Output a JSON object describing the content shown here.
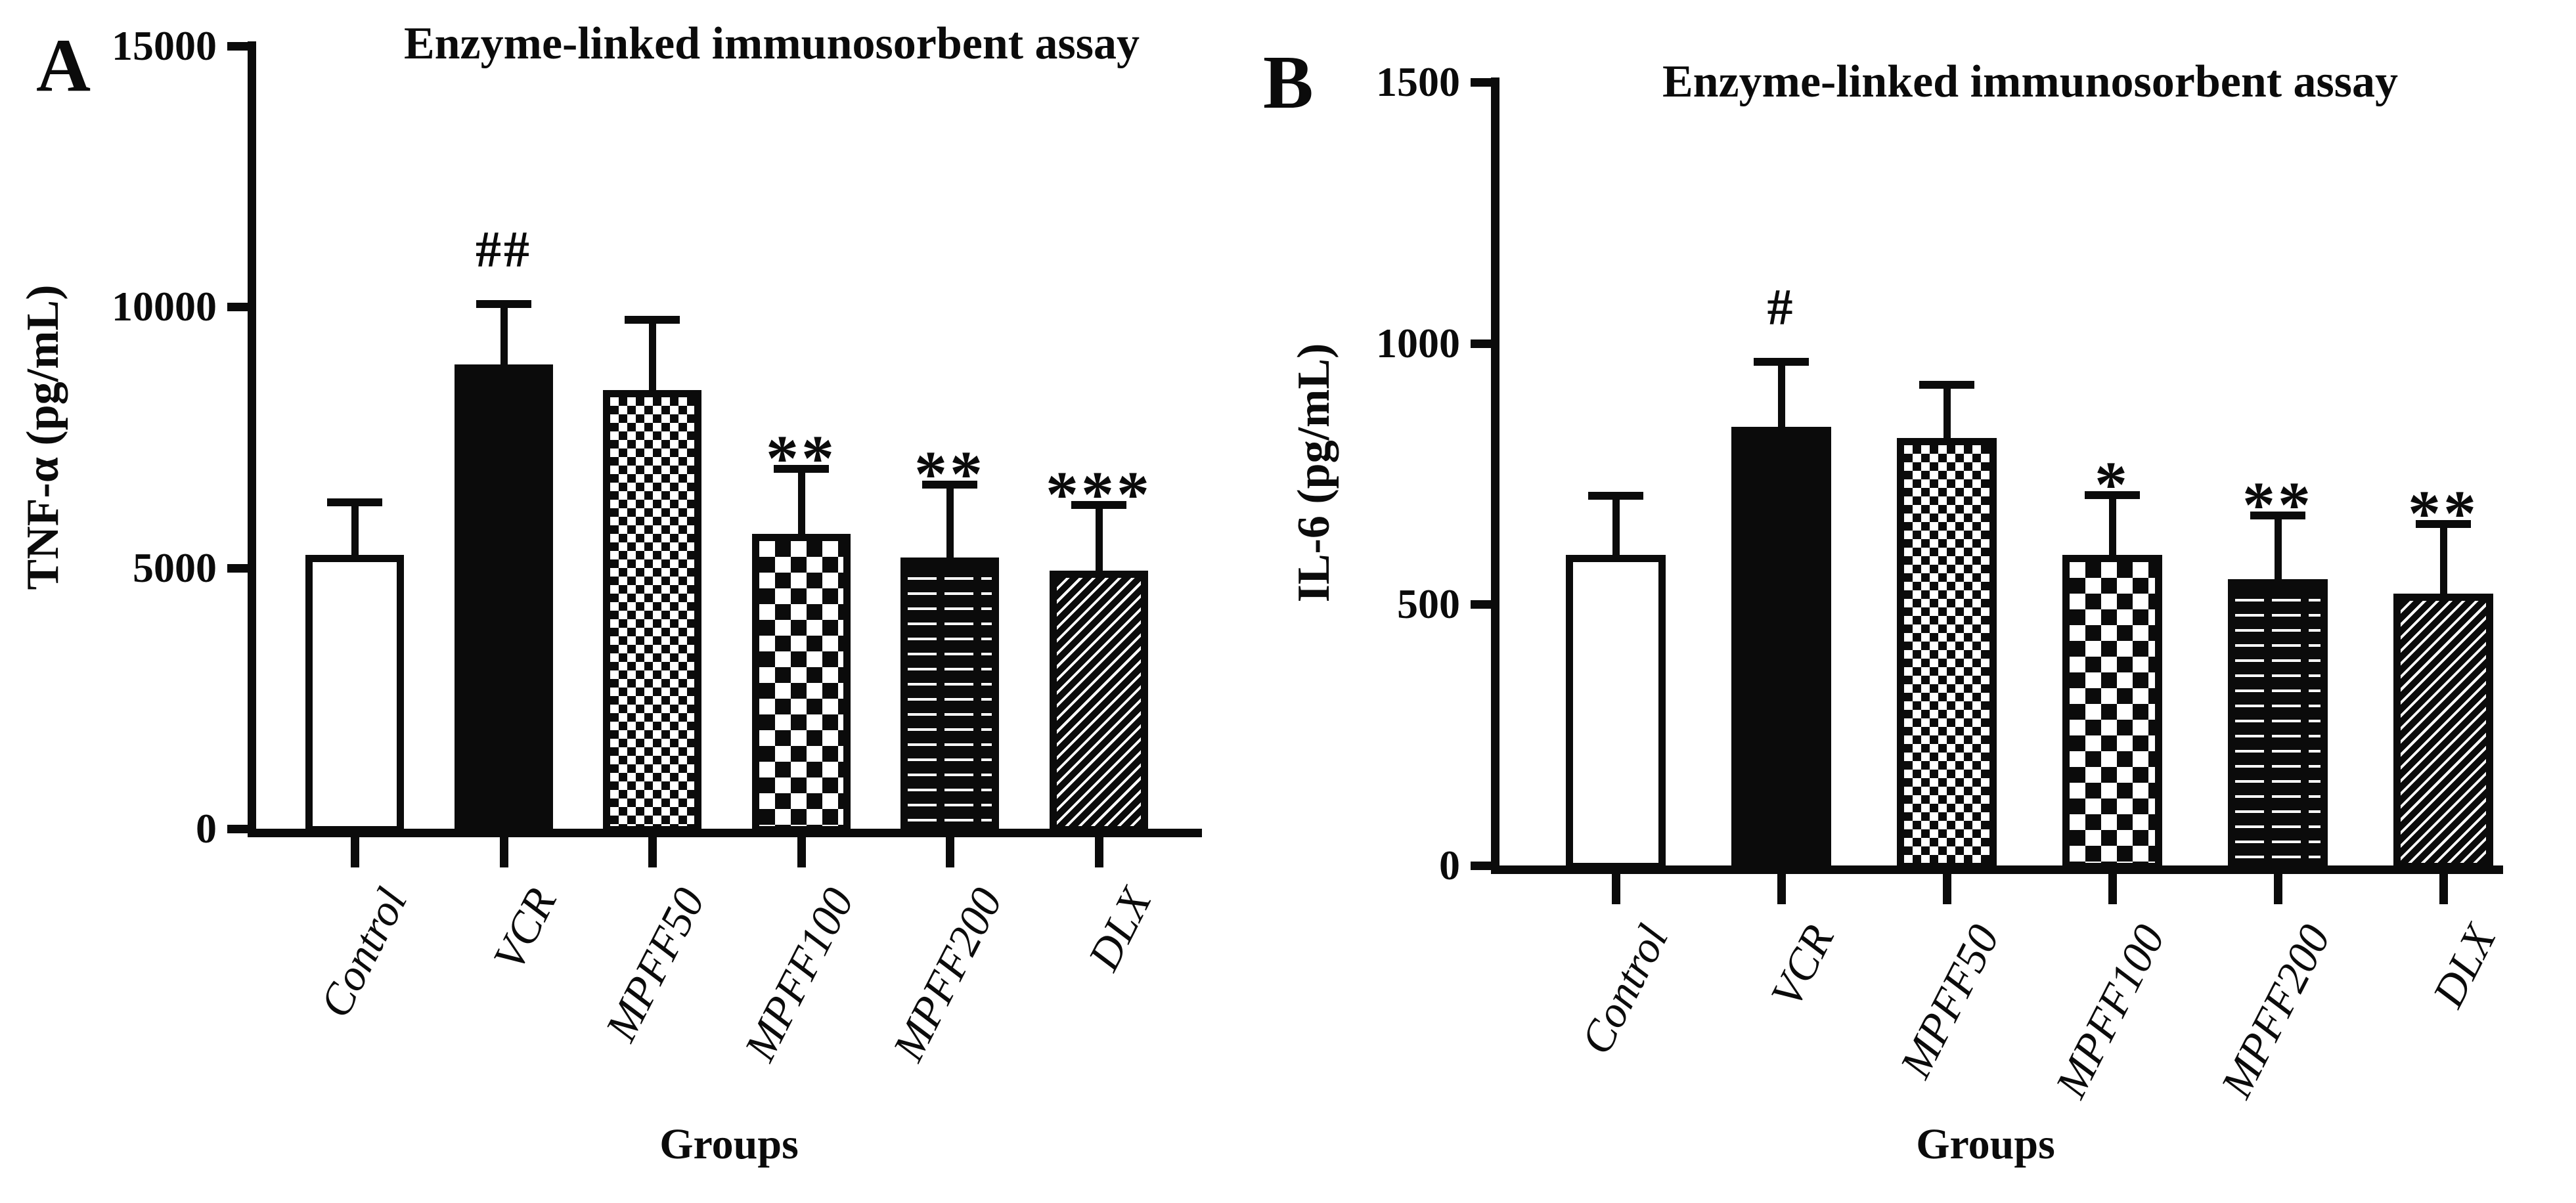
{
  "figure": {
    "background": "#ffffff",
    "ink": "#0b0b0b"
  },
  "chart_data": [
    {
      "type": "bar",
      "panel_letter": "A",
      "title": "Enzyme-linked immunosorbent assay",
      "xlabel": "Groups",
      "ylabel": "TNF-α  (pg/mL)",
      "ylim": [
        0,
        15000
      ],
      "yticks": [
        0,
        5000,
        10000,
        15000
      ],
      "categories": [
        "Control",
        "VCR",
        "MPFF50",
        "MPFF100",
        "MPFF200",
        "DLX"
      ],
      "values": [
        5250,
        8900,
        8400,
        5650,
        5200,
        4950
      ],
      "errors_sd": [
        1000,
        1150,
        1350,
        1250,
        1400,
        1250
      ],
      "significance": [
        "",
        "##",
        "",
        "**",
        "**",
        "***"
      ],
      "bar_patterns": [
        "white",
        "solid",
        "checker-fine",
        "checker-coarse",
        "stripes-horizontal",
        "stripes-diagonal"
      ],
      "bar_color": "#0b0b0b",
      "grid": false,
      "legend": false
    },
    {
      "type": "bar",
      "panel_letter": "B",
      "title": "Enzyme-linked immunosorbent assay",
      "xlabel": "Groups",
      "ylabel": "IL-6 (pg/mL)",
      "ylim": [
        0,
        1500
      ],
      "yticks": [
        0,
        500,
        1000,
        1500
      ],
      "categories": [
        "Control",
        "VCR",
        "MPFF50",
        "MPFF100",
        "MPFF200",
        "DLX"
      ],
      "values": [
        595,
        840,
        818,
        595,
        548,
        520
      ],
      "errors_sd": [
        113,
        125,
        102,
        114,
        122,
        134
      ],
      "significance": [
        "",
        "#",
        "",
        "*",
        "**",
        "**"
      ],
      "bar_patterns": [
        "white",
        "solid",
        "checker-fine",
        "checker-coarse",
        "stripes-horizontal",
        "stripes-diagonal"
      ],
      "bar_color": "#0b0b0b",
      "grid": false,
      "legend": false
    }
  ]
}
